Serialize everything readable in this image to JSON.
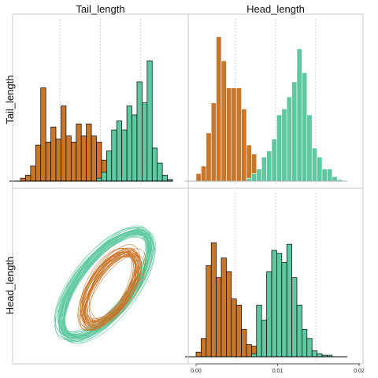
{
  "chart_data": {
    "type": "pairs-plot",
    "variables": [
      "Tail_length",
      "Head_length"
    ],
    "colors": {
      "orange": "#c8762a",
      "green": "#5ec9a0"
    },
    "panels": [
      {
        "position": "top-left",
        "type": "histogram",
        "title": "Tail_length",
        "series": [
          {
            "color": "orange",
            "values": [
              0.02,
              0.04,
              0.1,
              0.24,
              0.62,
              0.26,
              0.36,
              0.28,
              0.5,
              0.3,
              0.26,
              0.38,
              0.3,
              0.38,
              0.3,
              0.26,
              0.14,
              0.2,
              0.2,
              0.08,
              0.16,
              0.05,
              0.04,
              0.02,
              0.05,
              0.08,
              0.03,
              0.03,
              0.02,
              0.01
            ]
          },
          {
            "color": "green",
            "values": [
              0,
              0,
              0,
              0,
              0,
              0,
              0,
              0,
              0,
              0,
              0,
              0,
              0,
              0,
              0,
              0.02,
              0.06,
              0.2,
              0.34,
              0.4,
              0.34,
              0.5,
              0.44,
              0.66,
              0.52,
              0.8,
              0.22,
              0.12,
              0.04,
              0.01
            ]
          }
        ]
      },
      {
        "position": "top-right",
        "type": "histogram",
        "title": "Head_length",
        "series": [
          {
            "color": "orange",
            "values": [
              0.05,
              0.1,
              0.32,
              0.52,
              0.96,
              0.8,
              0.62,
              0.62,
              0.62,
              0.48,
              0.24,
              0.18,
              0.08,
              0.05,
              0.03,
              0.02,
              0.01,
              0,
              0,
              0,
              0,
              0,
              0,
              0,
              0,
              0,
              0,
              0,
              0,
              0
            ]
          },
          {
            "color": "green",
            "values": [
              0,
              0,
              0,
              0,
              0,
              0,
              0,
              0,
              0,
              0,
              0.02,
              0.05,
              0.08,
              0.16,
              0.2,
              0.28,
              0.44,
              0.48,
              0.56,
              0.66,
              0.88,
              0.72,
              0.44,
              0.22,
              0.16,
              0.08,
              0.08,
              0.03,
              0.01,
              0
            ]
          }
        ]
      },
      {
        "position": "bottom-left",
        "type": "ellipses",
        "y_label": "Head_length",
        "series": [
          {
            "color": "green",
            "count": 40,
            "center": [
              0.53,
              0.55
            ],
            "semi_major": [
              0.7,
              0.76
            ],
            "semi_minor": [
              0.28,
              0.33
            ],
            "angle_deg": [
              49,
              55
            ]
          },
          {
            "color": "orange",
            "count": 32,
            "center": [
              0.56,
              0.57
            ],
            "semi_major": [
              0.42,
              0.55
            ],
            "semi_minor": [
              0.18,
              0.24
            ],
            "angle_deg": [
              53,
              63
            ]
          }
        ]
      },
      {
        "position": "bottom-right",
        "type": "histogram",
        "x_ticks": [
          {
            "value": 0.0,
            "label": "0.00"
          },
          {
            "value": 0.01,
            "label": "0.01"
          },
          {
            "value": 0.02,
            "label": "0.02"
          }
        ],
        "xlim": [
          0.0,
          0.02
        ],
        "series": [
          {
            "color": "orange",
            "values": [
              0.03,
              0.12,
              0.6,
              0.75,
              0.52,
              0.65,
              0.56,
              0.38,
              0.34,
              0.18,
              0.08,
              0.07,
              0.03,
              0.02,
              0.01,
              0,
              0,
              0,
              0,
              0,
              0,
              0,
              0,
              0,
              0,
              0,
              0,
              0,
              0,
              0
            ]
          },
          {
            "color": "green",
            "values": [
              0,
              0,
              0,
              0,
              0,
              0,
              0,
              0,
              0,
              0,
              0,
              0.02,
              0.34,
              0.24,
              0.56,
              0.7,
              0.68,
              0.62,
              0.74,
              0.52,
              0.34,
              0.18,
              0.12,
              0.04,
              0.02,
              0.01,
              0.01,
              0,
              0,
              0
            ]
          }
        ]
      }
    ]
  }
}
